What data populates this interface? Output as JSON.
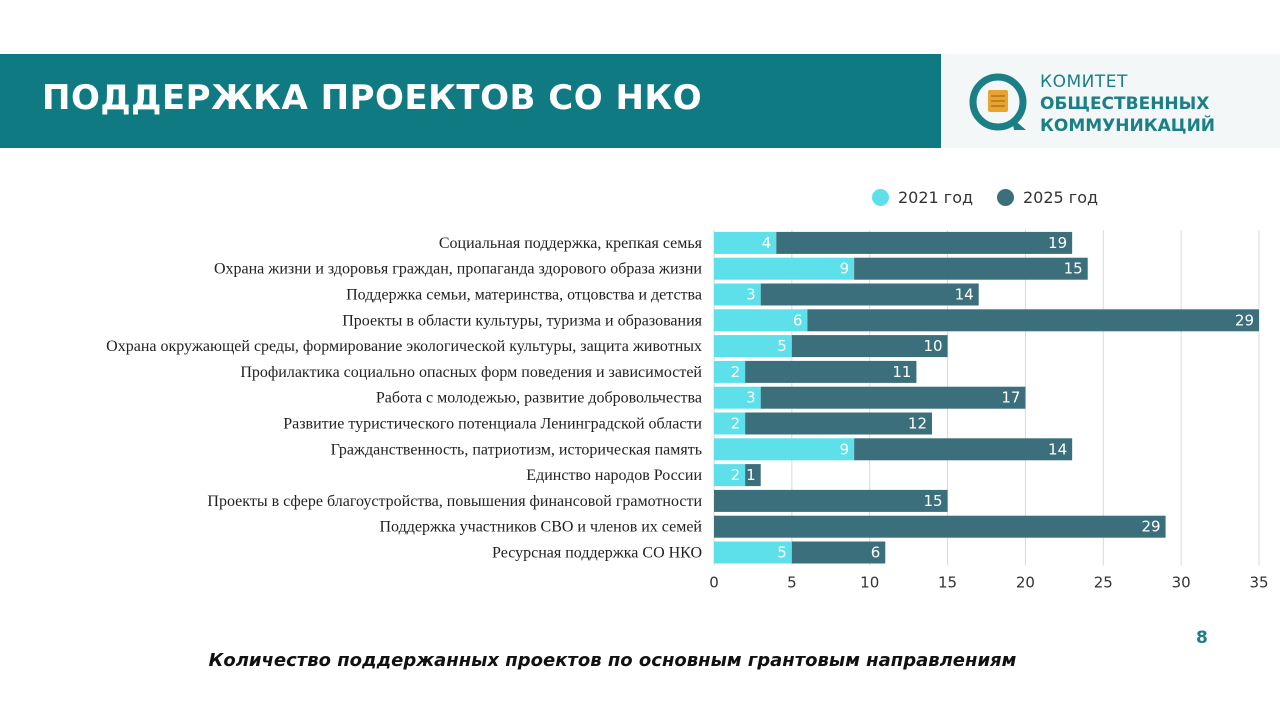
{
  "header": {
    "title": "ПОДДЕРЖКА ПРОЕКТОВ СО НКО"
  },
  "logo": {
    "line1": "КОМИТЕТ",
    "line2": "ОБЩЕСТВЕННЫХ",
    "line3": "КОММУНИКАЦИЙ",
    "accent_color": "#1a7f86"
  },
  "page_number": "8",
  "caption": "Количество поддержанных проектов по основным грантовым направлениям",
  "colors": {
    "banner": "#0f7a82",
    "series_2021": "#5ee0ea",
    "series_2025": "#3b6f7b"
  },
  "chart_data": {
    "type": "bar",
    "orientation": "horizontal",
    "stacked": true,
    "categories": [
      "Социальная поддержка, крепкая семья",
      "Охрана жизни и здоровья граждан, пропаганда здорового образа жизни",
      "Поддержка семьи, материнства, отцовства и детства",
      "Проекты в области культуры, туризма и образования",
      "Охрана окружающей среды, формирование экологической культуры, защита животных",
      "Профилактика социально опасных форм поведения и зависимостей",
      "Работа с молодежью, развитие добровольчества",
      "Развитие туристического потенциала Ленинградской области",
      "Гражданственность, патриотизм, историческая память",
      "Единство народов России",
      "Проекты в сфере благоустройства, повышения финансовой грамотности",
      "Поддержка участников СВО и членов их семей",
      "Ресурсная поддержка СО НКО"
    ],
    "series": [
      {
        "name": "2021 год",
        "color": "#5ee0ea",
        "values": [
          4,
          9,
          3,
          6,
          5,
          2,
          3,
          2,
          9,
          2,
          null,
          null,
          5
        ]
      },
      {
        "name": "2025 год",
        "color": "#3b6f7b",
        "values": [
          19,
          15,
          14,
          29,
          10,
          11,
          17,
          12,
          14,
          1,
          15,
          29,
          6
        ]
      }
    ],
    "x_ticks": [
      "0",
      "5",
      "10",
      "15",
      "20",
      "25",
      "30",
      "35"
    ],
    "xlim": [
      0,
      35
    ],
    "grid": true,
    "legend_position": "top"
  }
}
